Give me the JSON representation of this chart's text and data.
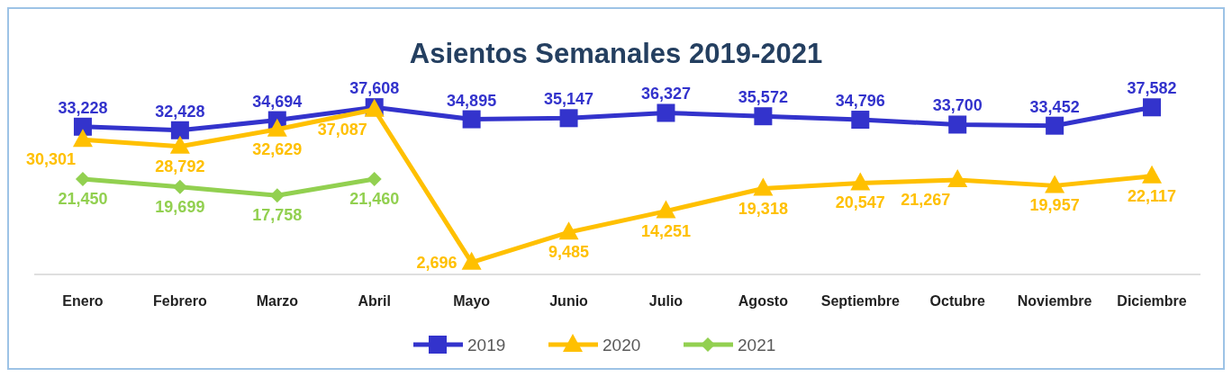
{
  "chart_data": {
    "type": "line",
    "title": "Asientos Semanales 2019-2021",
    "categories": [
      "Enero",
      "Febrero",
      "Marzo",
      "Abril",
      "Mayo",
      "Junio",
      "Julio",
      "Agosto",
      "Septiembre",
      "Octubre",
      "Noviembre",
      "Diciembre"
    ],
    "series": [
      {
        "name": "2019",
        "color": "#3333cc",
        "marker": "square",
        "values": [
          33228,
          32428,
          34694,
          37608,
          34895,
          35147,
          36327,
          35572,
          34796,
          33700,
          33452,
          37582
        ],
        "value_labels": [
          "33,228",
          "32,428",
          "34,694",
          "37,608",
          "34,895",
          "35,147",
          "36,327",
          "35,572",
          "34,796",
          "33,700",
          "33,452",
          "37,582"
        ]
      },
      {
        "name": "2020",
        "color": "#ffc000",
        "marker": "triangle",
        "values": [
          30301,
          28792,
          32629,
          37087,
          2696,
          9485,
          14251,
          19318,
          20547,
          21267,
          19957,
          22117
        ],
        "value_labels": [
          "30,301",
          "28,792",
          "32,629",
          "37,087",
          "2,696",
          "9,485",
          "14,251",
          "19,318",
          "20,547",
          "21,267",
          "19,957",
          "22,117"
        ]
      },
      {
        "name": "2021",
        "color": "#92d050",
        "marker": "diamond",
        "values": [
          21450,
          19699,
          17758,
          21460,
          null,
          null,
          null,
          null,
          null,
          null,
          null,
          null
        ],
        "value_labels": [
          "21,450",
          "19,699",
          "17,758",
          "21,460",
          null,
          null,
          null,
          null,
          null,
          null,
          null,
          null
        ]
      }
    ],
    "relative": false,
    "tick_labels": "x",
    "legend": "bottom",
    "line_style": "solid"
  }
}
